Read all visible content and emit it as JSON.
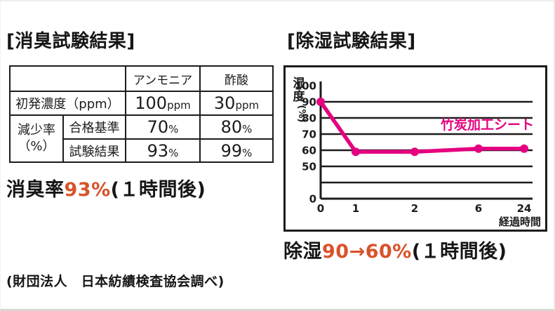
{
  "colors": {
    "ink": "#1c1c1c",
    "accent_orange": "#d8532a",
    "accent_magenta": "#e4007f"
  },
  "left_panel": {
    "result": {
      "prefix": "消臭率",
      "highlight": "93%",
      "suffix": "(１時間後)"
    },
    "source_note": "(財団法人　日本紡績検査協会調べ)"
  },
  "right_panel": {
    "result": {
      "prefix": "除湿",
      "highlight": "90→60%",
      "suffix": "(１時間後)"
    }
  },
  "chart_data": [
    {
      "type": "table",
      "title": "[消臭試験結果]",
      "col_headers": [
        "アンモニア",
        "酢酸"
      ],
      "row_label_initial": "初発濃度（ppm）",
      "group_label_line1": "減少率",
      "group_label_line2": "（%）",
      "row_label_standard": "合格基準",
      "row_label_result": "試験結果",
      "initial": [
        {
          "num": "100",
          "unit": "ppm"
        },
        {
          "num": "30",
          "unit": "ppm"
        }
      ],
      "standard": [
        {
          "num": "70",
          "unit": "%"
        },
        {
          "num": "80",
          "unit": "%"
        }
      ],
      "result": [
        {
          "num": "93",
          "unit": "%"
        },
        {
          "num": "99",
          "unit": "%"
        }
      ]
    },
    {
      "type": "line",
      "title": "[除湿試験結果]",
      "x": [
        0,
        1,
        2,
        6,
        24
      ],
      "series": [
        {
          "name": "竹炭加工シート",
          "values": [
            90,
            59,
            59,
            61,
            61
          ]
        }
      ],
      "xlabel": "経過時間",
      "ylabel": "湿度",
      "ylabel_unit": "(%)",
      "y_ticks": [
        100,
        90,
        80,
        70,
        60,
        50,
        0
      ],
      "ylim": [
        0,
        100
      ],
      "grid": true,
      "legend_position": "right-middle",
      "line_color": "#e4007f"
    }
  ]
}
